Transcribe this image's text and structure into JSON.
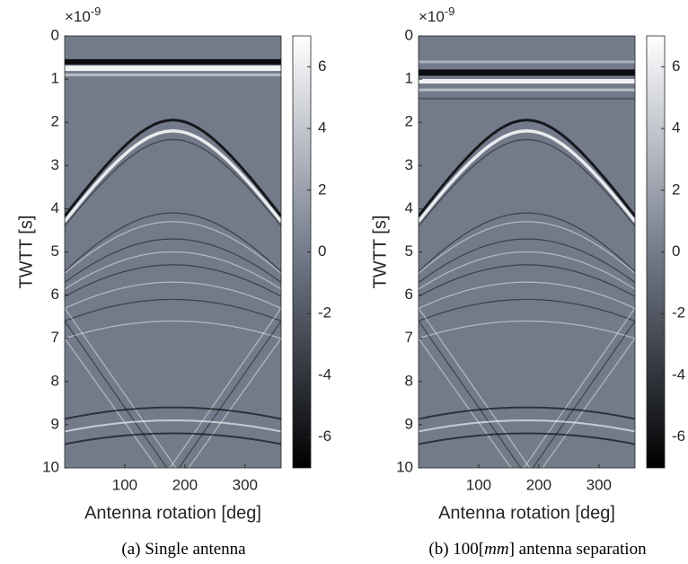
{
  "chart_data": [
    {
      "type": "heatmap",
      "xlabel": "Antenna rotation [deg]",
      "ylabel": "TWTT [s]",
      "offset_text": {
        "base": "×10",
        "power": "-9"
      },
      "xlim": [
        0,
        360
      ],
      "xticks": [
        100,
        200,
        300
      ],
      "ylim": [
        0,
        10
      ],
      "yticks": [
        0,
        1,
        2,
        3,
        4,
        5,
        6,
        7,
        8,
        9,
        10
      ],
      "y_reversed": true,
      "colormap": [
        "#000000",
        "#737b8b",
        "#ffffff"
      ],
      "colorbar": {
        "clim": [
          -7,
          7
        ],
        "ticks": [
          -6,
          -4,
          -2,
          0,
          2,
          4,
          6
        ]
      },
      "caption": [
        "(a) Single antenna"
      ]
    },
    {
      "type": "heatmap",
      "xlabel": "Antenna rotation [deg]",
      "ylabel": "TWTT [s]",
      "offset_text": {
        "base": "×10",
        "power": "-9"
      },
      "xlim": [
        0,
        360
      ],
      "xticks": [
        100,
        200,
        300
      ],
      "ylim": [
        0,
        10
      ],
      "yticks": [
        0,
        1,
        2,
        3,
        4,
        5,
        6,
        7,
        8,
        9,
        10
      ],
      "y_reversed": true,
      "colormap": [
        "#000000",
        "#737b8b",
        "#ffffff"
      ],
      "colorbar": {
        "clim": [
          -7,
          7
        ],
        "ticks": [
          -6,
          -4,
          -2,
          0,
          2,
          4,
          6
        ]
      },
      "caption": [
        "(b) 100[",
        "mm",
        "] antenna separation"
      ]
    }
  ]
}
